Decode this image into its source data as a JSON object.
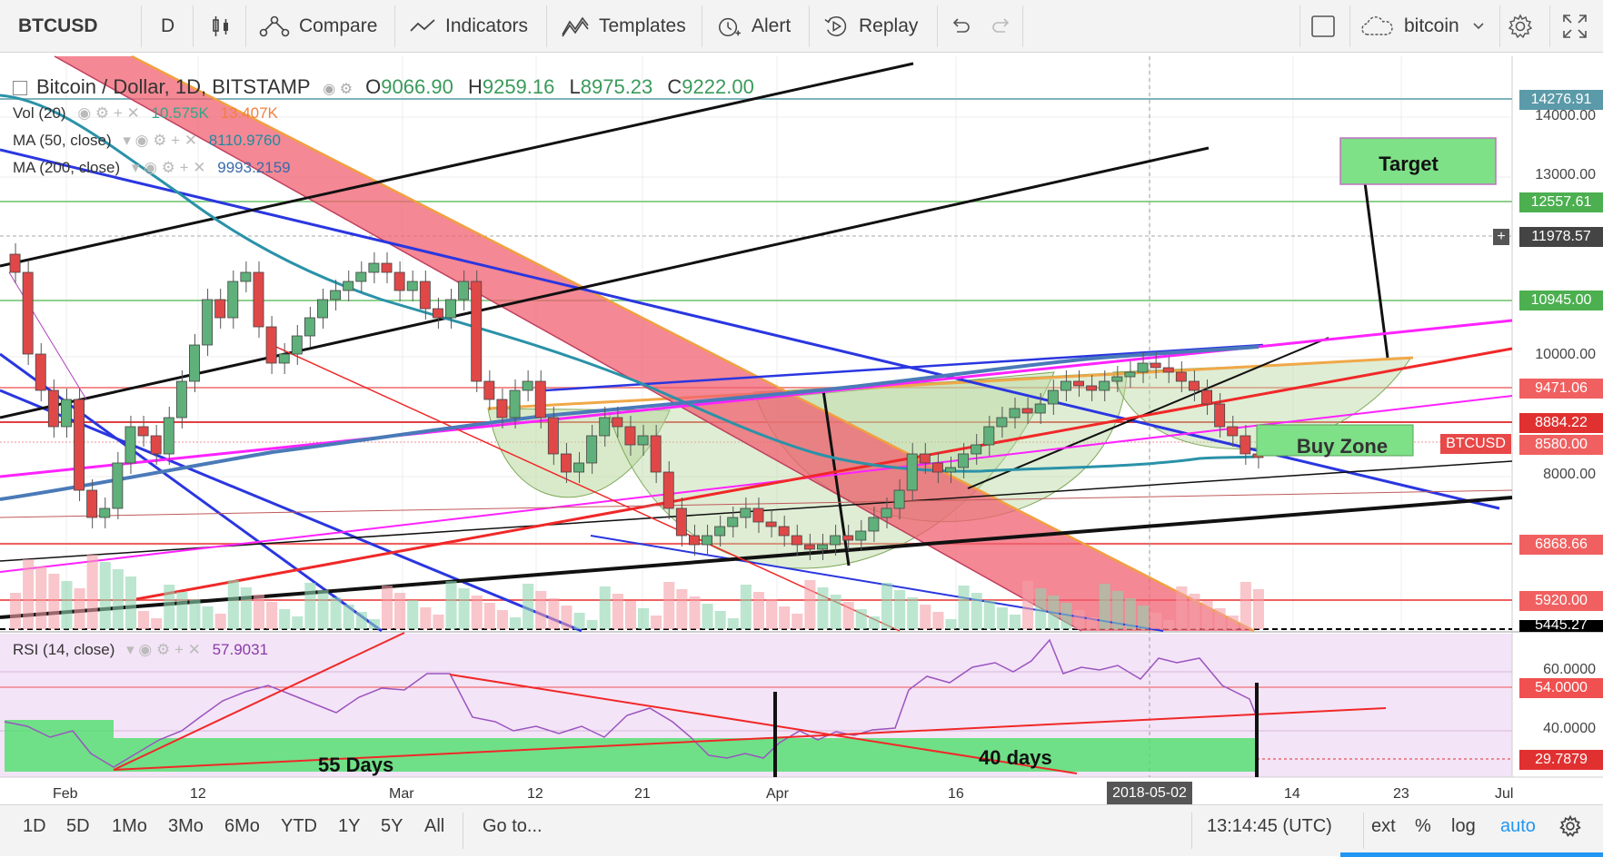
{
  "toolbar": {
    "symbol": "BTCUSD",
    "interval": "D",
    "compare": "Compare",
    "indicators": "Indicators",
    "templates": "Templates",
    "alert": "Alert",
    "replay": "Replay",
    "layout_name": "bitcoin"
  },
  "legend": {
    "title": "Bitcoin / Dollar, 1D, BITSTAMP",
    "o_label": "O",
    "o_value": "9066.90",
    "h_label": "H",
    "h_value": "9259.16",
    "l_label": "L",
    "l_value": "8975.23",
    "c_label": "C",
    "c_value": "9222.00",
    "vol_label": "Vol (20)",
    "vol_value1": "10.575K",
    "vol_value2": "13.407K",
    "ma50_label": "MA (50, close)",
    "ma50_value": "8110.9760",
    "ma200_label": "MA (200, close)",
    "ma200_value": "9993.2159",
    "rsi_label": "RSI (14, close)",
    "rsi_value": "57.9031"
  },
  "price_axis": {
    "ticks": [
      "14000.00",
      "13000.00",
      "10000.00",
      "8000.00"
    ],
    "labels": [
      {
        "text": "14276.91",
        "color": "#5b9aa8"
      },
      {
        "text": "12557.61",
        "color": "#4caf50"
      },
      {
        "text": "11978.57",
        "color": "#444444"
      },
      {
        "text": "10945.00",
        "color": "#4caf50"
      },
      {
        "text": "9471.06",
        "color": "#f06060"
      },
      {
        "text": "8884.22",
        "color": "#e03030"
      },
      {
        "text": "8580.00",
        "color": "#f06060"
      },
      {
        "text": "6868.66",
        "color": "#f06060"
      },
      {
        "text": "5920.00",
        "color": "#f06060"
      },
      {
        "text": "5445.27",
        "color": "#000000"
      }
    ],
    "btc_tag": "BTCUSD"
  },
  "rsi_axis": {
    "ticks": [
      "60.0000",
      "40.0000"
    ],
    "labels": [
      {
        "text": "54.0000",
        "color": "#f05050"
      },
      {
        "text": "29.7879",
        "color": "#e03030"
      }
    ]
  },
  "time_axis": {
    "labels": [
      "Feb",
      "12",
      "Mar",
      "12",
      "21",
      "Apr",
      "16",
      "14",
      "23",
      "Jul"
    ],
    "highlight": "2018-05-02"
  },
  "annotations": {
    "target": "Target",
    "buy_zone": "Buy Zone",
    "days55": "55 Days",
    "days40": "40 days"
  },
  "bottom": {
    "ranges": [
      "1D",
      "5D",
      "1Mo",
      "3Mo",
      "6Mo",
      "YTD",
      "1Y",
      "5Y",
      "All"
    ],
    "goto": "Go to...",
    "time": "13:14:45 (UTC)",
    "ext": "ext",
    "pct": "%",
    "log": "log",
    "auto": "auto"
  },
  "colors": {
    "up": "#5fb07a",
    "down": "#e04848",
    "accent": "#2962ff",
    "auto": "#2196f3"
  }
}
